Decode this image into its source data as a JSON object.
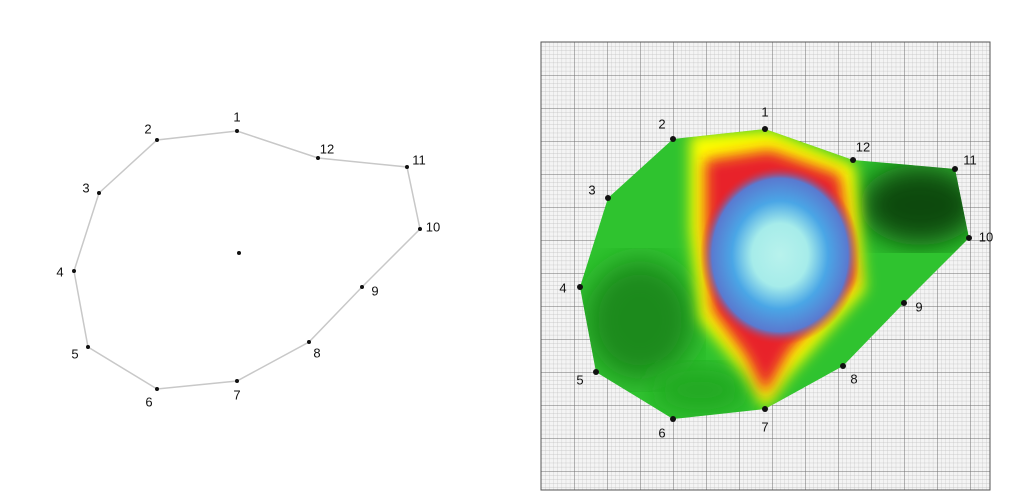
{
  "left": {
    "points": [
      {
        "label": "1"
      },
      {
        "label": "2"
      },
      {
        "label": "3"
      },
      {
        "label": "4"
      },
      {
        "label": "5"
      },
      {
        "label": "6"
      },
      {
        "label": "7"
      },
      {
        "label": "8"
      },
      {
        "label": "9"
      },
      {
        "label": "10"
      },
      {
        "label": "11"
      },
      {
        "label": "12"
      }
    ]
  },
  "right": {
    "points": [
      {
        "label": "1"
      },
      {
        "label": "2"
      },
      {
        "label": "3"
      },
      {
        "label": "4"
      },
      {
        "label": "5"
      },
      {
        "label": "6"
      },
      {
        "label": "7"
      },
      {
        "label": "8"
      },
      {
        "label": "9"
      },
      {
        "label": "10"
      },
      {
        "label": "11"
      },
      {
        "label": "12"
      }
    ]
  }
}
